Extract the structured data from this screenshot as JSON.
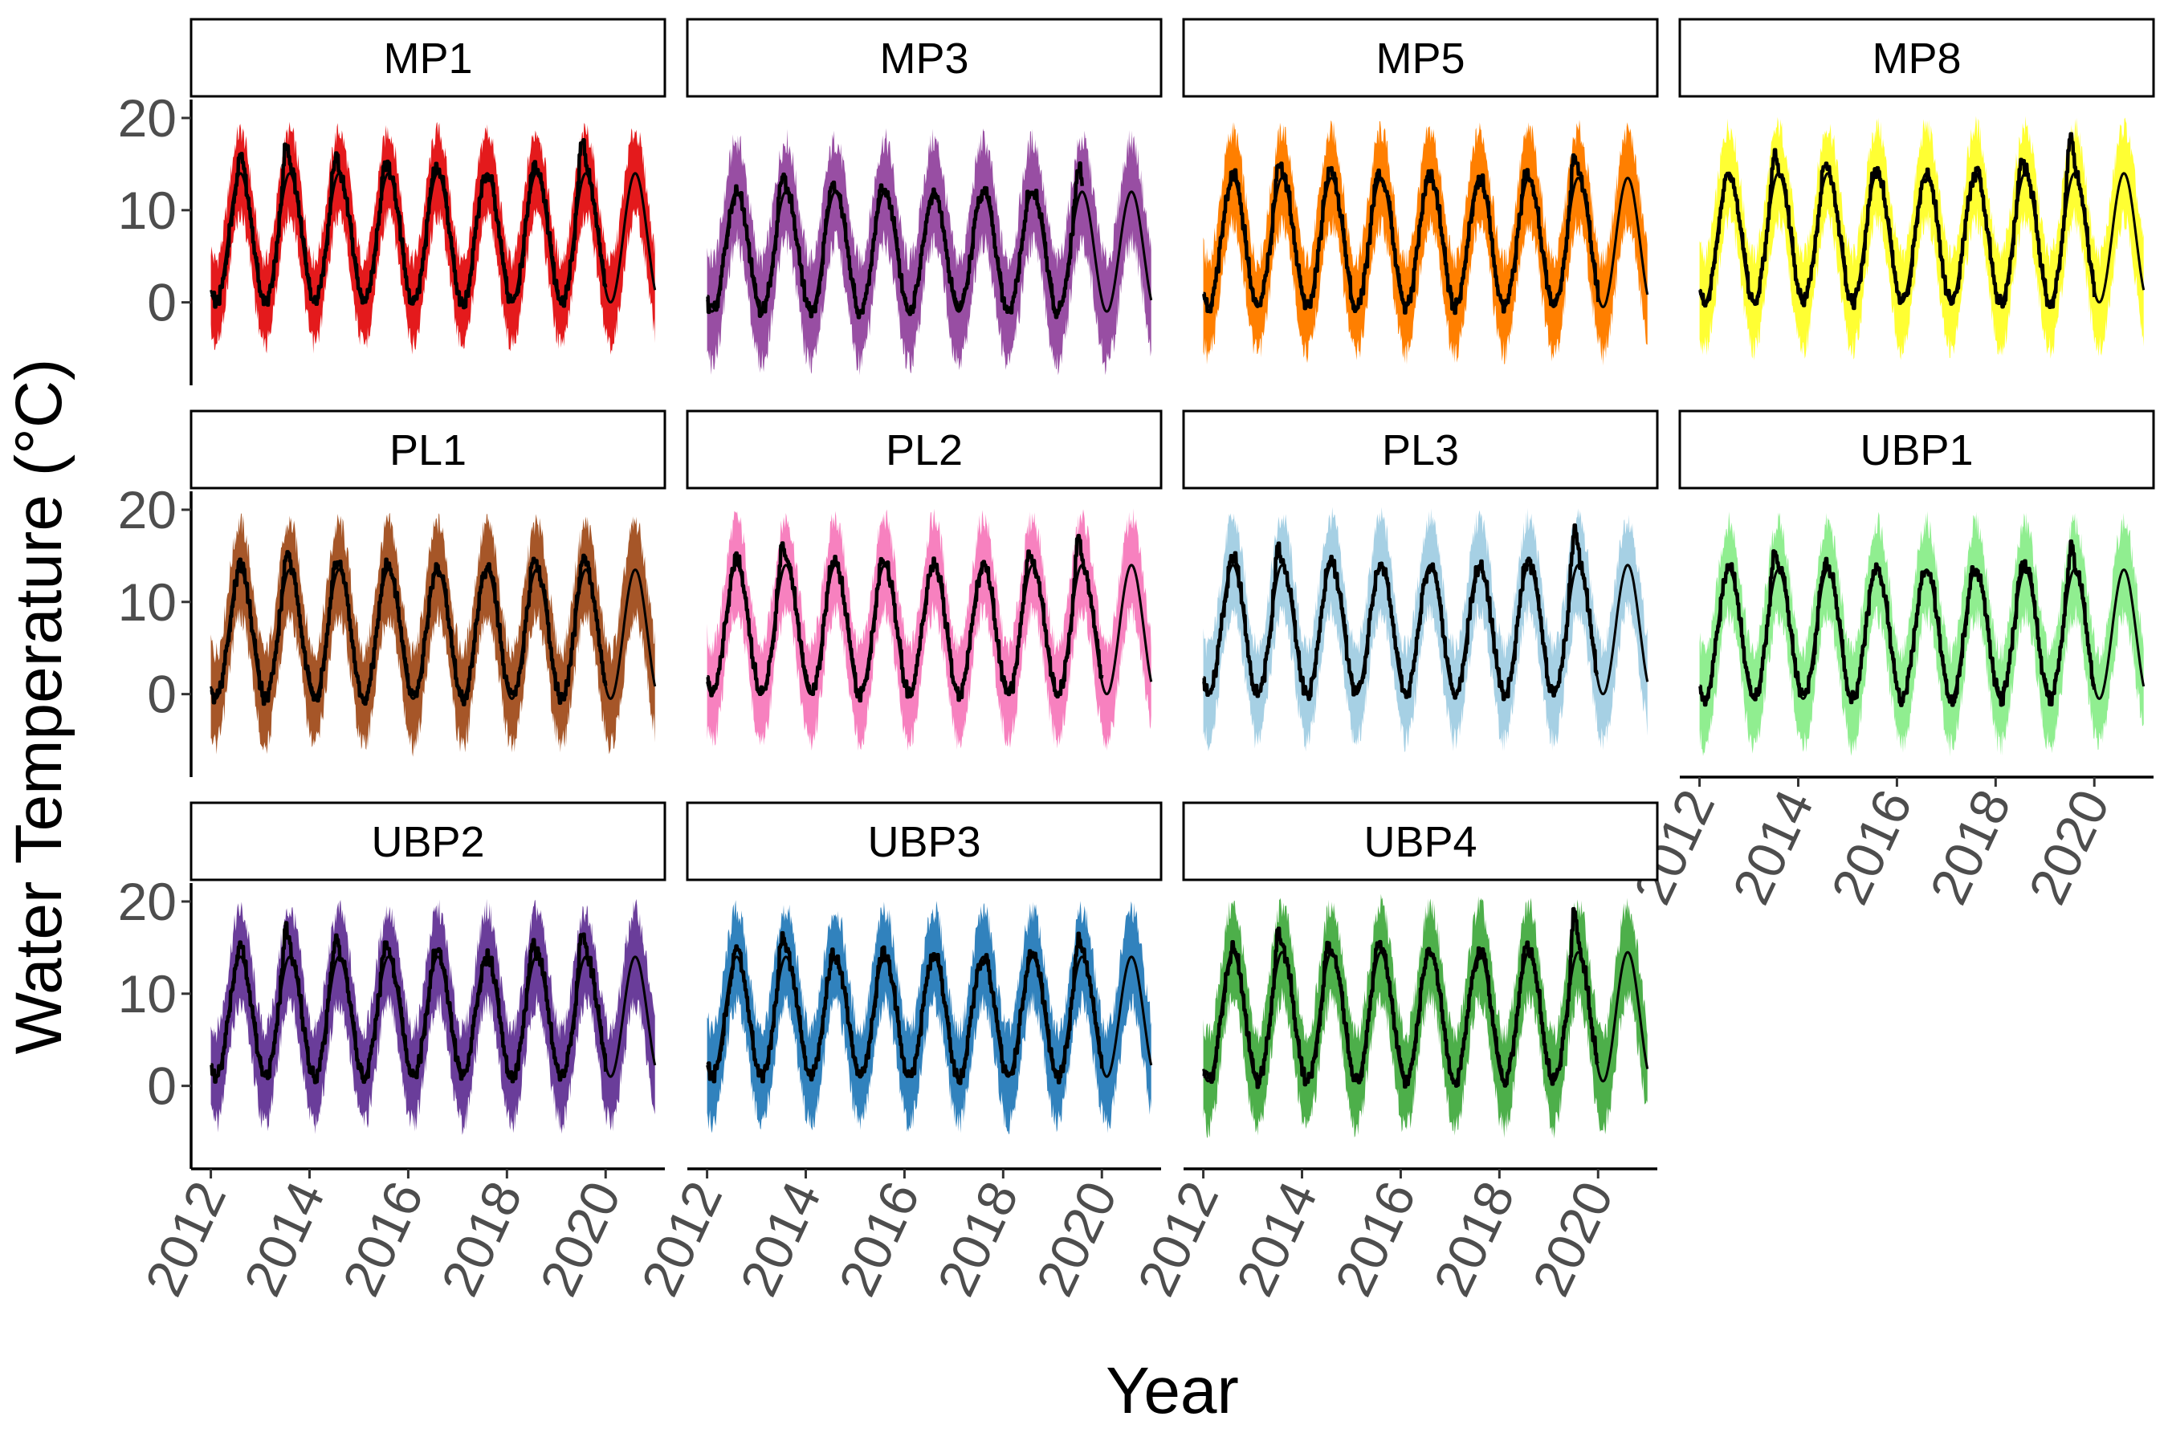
{
  "chart_data": {
    "type": "area",
    "title": "",
    "xlabel": "Year",
    "ylabel": "Water Temperature (°C)",
    "xlim": [
      2011.6,
      2021.2
    ],
    "ylim": [
      -9,
      22
    ],
    "x_ticks": [
      2012,
      2014,
      2016,
      2018,
      2020
    ],
    "y_ticks": [
      0,
      10,
      20
    ],
    "x_tick_labels": [
      "2012",
      "2014",
      "2016",
      "2018",
      "2020"
    ],
    "y_tick_labels": [
      "0",
      "10",
      "20"
    ],
    "grid": false,
    "legend": "none",
    "facets": [
      {
        "name": "MP1",
        "color": "#e41a1c",
        "mean": 7.0,
        "amplitude": 7.0,
        "band_halfwidth": 4.5,
        "obs_end": 2020.0,
        "peaks": [
          {
            "x": 2012.6,
            "y": 16
          },
          {
            "x": 2013.5,
            "y": 18
          },
          {
            "x": 2014.5,
            "y": 17
          },
          {
            "x": 2015.5,
            "y": 16
          },
          {
            "x": 2016.5,
            "y": 15
          },
          {
            "x": 2017.5,
            "y": 14
          },
          {
            "x": 2018.5,
            "y": 16
          },
          {
            "x": 2019.5,
            "y": 19
          }
        ]
      },
      {
        "name": "MP3",
        "color": "#984ea3",
        "mean": 5.5,
        "amplitude": 6.5,
        "band_halfwidth": 5.5,
        "obs_end": 2019.6,
        "peaks": [
          {
            "x": 2012.6,
            "y": 12
          },
          {
            "x": 2013.5,
            "y": 15
          },
          {
            "x": 2014.5,
            "y": 14
          },
          {
            "x": 2015.5,
            "y": 13
          },
          {
            "x": 2016.5,
            "y": 12
          },
          {
            "x": 2017.5,
            "y": 12
          },
          {
            "x": 2018.5,
            "y": 13
          },
          {
            "x": 2019.5,
            "y": 16
          }
        ]
      },
      {
        "name": "MP5",
        "color": "#ff7f00",
        "mean": 6.5,
        "amplitude": 7.0,
        "band_halfwidth": 5.0,
        "obs_end": 2020.0,
        "peaks": [
          {
            "x": 2012.6,
            "y": 14
          },
          {
            "x": 2013.5,
            "y": 16
          },
          {
            "x": 2014.5,
            "y": 15
          },
          {
            "x": 2015.5,
            "y": 15
          },
          {
            "x": 2016.5,
            "y": 14
          },
          {
            "x": 2017.5,
            "y": 13
          },
          {
            "x": 2018.5,
            "y": 15
          },
          {
            "x": 2019.5,
            "y": 17
          }
        ]
      },
      {
        "name": "MP8",
        "color": "#ffff33",
        "mean": 7.0,
        "amplitude": 7.0,
        "band_halfwidth": 5.0,
        "obs_end": 2020.0,
        "peaks": [
          {
            "x": 2012.6,
            "y": 14
          },
          {
            "x": 2013.5,
            "y": 17
          },
          {
            "x": 2014.5,
            "y": 16
          },
          {
            "x": 2015.5,
            "y": 15
          },
          {
            "x": 2016.5,
            "y": 14
          },
          {
            "x": 2017.5,
            "y": 14
          },
          {
            "x": 2018.5,
            "y": 16
          },
          {
            "x": 2019.5,
            "y": 19
          }
        ]
      },
      {
        "name": "PL1",
        "color": "#a65628",
        "mean": 6.5,
        "amplitude": 7.0,
        "band_halfwidth": 5.0,
        "obs_end": 2020.0,
        "peaks": [
          {
            "x": 2012.6,
            "y": 14
          },
          {
            "x": 2013.5,
            "y": 16
          },
          {
            "x": 2014.5,
            "y": 15
          },
          {
            "x": 2015.5,
            "y": 15
          },
          {
            "x": 2016.5,
            "y": 14
          },
          {
            "x": 2017.5,
            "y": 14
          },
          {
            "x": 2018.5,
            "y": 15
          },
          {
            "x": 2019.5,
            "y": 16
          }
        ]
      },
      {
        "name": "PL2",
        "color": "#f781bf",
        "mean": 7.0,
        "amplitude": 7.0,
        "band_halfwidth": 5.0,
        "obs_end": 2020.0,
        "peaks": [
          {
            "x": 2012.6,
            "y": 15
          },
          {
            "x": 2013.5,
            "y": 17
          },
          {
            "x": 2014.5,
            "y": 15
          },
          {
            "x": 2015.5,
            "y": 15
          },
          {
            "x": 2016.5,
            "y": 14
          },
          {
            "x": 2017.5,
            "y": 14
          },
          {
            "x": 2018.5,
            "y": 16
          },
          {
            "x": 2019.5,
            "y": 18
          }
        ]
      },
      {
        "name": "PL3",
        "color": "#a6d0e4",
        "mean": 7.0,
        "amplitude": 7.0,
        "band_halfwidth": 5.0,
        "obs_end": 2020.0,
        "peaks": [
          {
            "x": 2012.6,
            "y": 15
          },
          {
            "x": 2013.5,
            "y": 17
          },
          {
            "x": 2014.5,
            "y": 15
          },
          {
            "x": 2015.5,
            "y": 14
          },
          {
            "x": 2016.5,
            "y": 14
          },
          {
            "x": 2017.5,
            "y": 14
          },
          {
            "x": 2018.5,
            "y": 15
          },
          {
            "x": 2019.5,
            "y": 19
          }
        ]
      },
      {
        "name": "UBP1",
        "color": "#90ee90",
        "mean": 6.5,
        "amplitude": 7.0,
        "band_halfwidth": 5.0,
        "obs_end": 2020.0,
        "peaks": [
          {
            "x": 2012.6,
            "y": 14
          },
          {
            "x": 2013.5,
            "y": 17
          },
          {
            "x": 2014.5,
            "y": 15
          },
          {
            "x": 2015.5,
            "y": 14
          },
          {
            "x": 2016.5,
            "y": 14
          },
          {
            "x": 2017.5,
            "y": 14
          },
          {
            "x": 2018.5,
            "y": 15
          },
          {
            "x": 2019.5,
            "y": 17
          }
        ]
      },
      {
        "name": "UBP2",
        "color": "#6a3d9a",
        "mean": 7.5,
        "amplitude": 6.5,
        "band_halfwidth": 5.0,
        "obs_end": 2020.0,
        "peaks": [
          {
            "x": 2012.6,
            "y": 15
          },
          {
            "x": 2013.5,
            "y": 18
          },
          {
            "x": 2014.5,
            "y": 17
          },
          {
            "x": 2015.5,
            "y": 16
          },
          {
            "x": 2016.5,
            "y": 15
          },
          {
            "x": 2017.5,
            "y": 14
          },
          {
            "x": 2018.5,
            "y": 16
          },
          {
            "x": 2019.5,
            "y": 18
          }
        ]
      },
      {
        "name": "UBP3",
        "color": "#3182bd",
        "mean": 7.5,
        "amplitude": 6.5,
        "band_halfwidth": 5.0,
        "obs_end": 2020.0,
        "peaks": [
          {
            "x": 2012.6,
            "y": 15
          },
          {
            "x": 2013.5,
            "y": 17
          },
          {
            "x": 2014.5,
            "y": 15
          },
          {
            "x": 2015.5,
            "y": 15
          },
          {
            "x": 2016.5,
            "y": 14
          },
          {
            "x": 2017.5,
            "y": 14
          },
          {
            "x": 2018.5,
            "y": 15
          },
          {
            "x": 2019.5,
            "y": 17
          }
        ]
      },
      {
        "name": "UBP4",
        "color": "#4daf4a",
        "mean": 7.5,
        "amplitude": 7.0,
        "band_halfwidth": 5.0,
        "obs_end": 2020.0,
        "peaks": [
          {
            "x": 2012.6,
            "y": 15
          },
          {
            "x": 2013.5,
            "y": 18
          },
          {
            "x": 2014.5,
            "y": 16
          },
          {
            "x": 2015.5,
            "y": 16
          },
          {
            "x": 2016.5,
            "y": 15
          },
          {
            "x": 2017.5,
            "y": 14
          },
          {
            "x": 2018.5,
            "y": 16
          },
          {
            "x": 2019.5,
            "y": 20
          }
        ]
      }
    ]
  }
}
